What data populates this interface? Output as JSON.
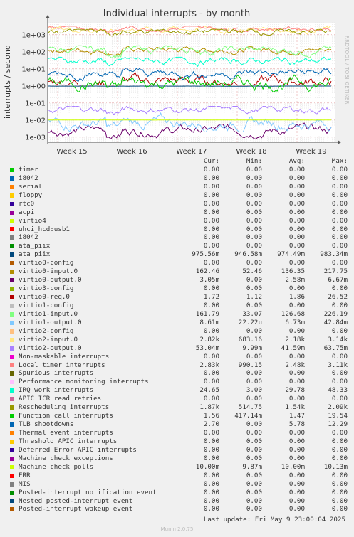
{
  "chart_data": {
    "type": "line",
    "title": "Individual interrupts - by month",
    "ylabel": "interrupts / second",
    "yscale": "log",
    "ylim": [
      0.0005,
      5000
    ],
    "y_ticks": [
      "1e+03",
      "1e+02",
      "1e+01",
      "1e+00",
      "1e-01",
      "1e-02",
      "1e-03"
    ],
    "x_ticks": [
      "Week 15",
      "Week 16",
      "Week 17",
      "Week 18",
      "Week 19"
    ],
    "grid": true,
    "legend": "below",
    "legend_header": {
      "cur": "Cur:",
      "min": "Min:",
      "avg": "Avg:",
      "max": "Max:"
    },
    "series": [
      {
        "name": "timer",
        "color": "#00cc00",
        "cur": "0.00",
        "min": "0.00",
        "avg": "0.00",
        "max": "0.00"
      },
      {
        "name": "i8042",
        "color": "#0066b3",
        "cur": "0.00",
        "min": "0.00",
        "avg": "0.00",
        "max": "0.00"
      },
      {
        "name": "serial",
        "color": "#ff8000",
        "cur": "0.00",
        "min": "0.00",
        "avg": "0.00",
        "max": "0.00"
      },
      {
        "name": "floppy",
        "color": "#ffcc00",
        "cur": "0.00",
        "min": "0.00",
        "avg": "0.00",
        "max": "0.00"
      },
      {
        "name": "rtc0",
        "color": "#330099",
        "cur": "0.00",
        "min": "0.00",
        "avg": "0.00",
        "max": "0.00"
      },
      {
        "name": "acpi",
        "color": "#990099",
        "cur": "0.00",
        "min": "0.00",
        "avg": "0.00",
        "max": "0.00"
      },
      {
        "name": "virtio4",
        "color": "#ccff00",
        "cur": "0.00",
        "min": "0.00",
        "avg": "0.00",
        "max": "0.00"
      },
      {
        "name": "uhci_hcd:usb1",
        "color": "#ff0000",
        "cur": "0.00",
        "min": "0.00",
        "avg": "0.00",
        "max": "0.00"
      },
      {
        "name": "i8042",
        "color": "#808080",
        "cur": "0.00",
        "min": "0.00",
        "avg": "0.00",
        "max": "0.00"
      },
      {
        "name": "ata_piix",
        "color": "#008f00",
        "cur": "0.00",
        "min": "0.00",
        "avg": "0.00",
        "max": "0.00"
      },
      {
        "name": "ata_piix",
        "color": "#00487d",
        "cur": "975.56m",
        "min": "946.58m",
        "avg": "974.49m",
        "max": "983.34m"
      },
      {
        "name": "virtio0-config",
        "color": "#b35a00",
        "cur": "0.00",
        "min": "0.00",
        "avg": "0.00",
        "max": "0.00"
      },
      {
        "name": "virtio0-input.0",
        "color": "#b38f00",
        "cur": "162.46",
        "min": "52.46",
        "avg": "136.35",
        "max": "217.75"
      },
      {
        "name": "virtio0-output.0",
        "color": "#6b006b",
        "cur": "3.05m",
        "min": "0.00",
        "avg": "2.58m",
        "max": "6.67m"
      },
      {
        "name": "virtio3-config",
        "color": "#8fb300",
        "cur": "0.00",
        "min": "0.00",
        "avg": "0.00",
        "max": "0.00"
      },
      {
        "name": "virtio0-req.0",
        "color": "#b30000",
        "cur": "1.72",
        "min": "1.12",
        "avg": "1.86",
        "max": "26.52"
      },
      {
        "name": "virtio1-config",
        "color": "#bebebe",
        "cur": "0.00",
        "min": "0.00",
        "avg": "0.00",
        "max": "0.00"
      },
      {
        "name": "virtio1-input.0",
        "color": "#80ff80",
        "cur": "161.79",
        "min": "33.07",
        "avg": "126.68",
        "max": "226.19"
      },
      {
        "name": "virtio1-output.0",
        "color": "#80c9ff",
        "cur": "8.61m",
        "min": "22.22u",
        "avg": "6.73m",
        "max": "42.84m"
      },
      {
        "name": "virtio2-config",
        "color": "#ffc080",
        "cur": "0.00",
        "min": "0.00",
        "avg": "0.00",
        "max": "0.00"
      },
      {
        "name": "virtio2-input.0",
        "color": "#ffe680",
        "cur": "2.82k",
        "min": "683.16",
        "avg": "2.18k",
        "max": "3.14k"
      },
      {
        "name": "virtio2-output.0",
        "color": "#aa80ff",
        "cur": "53.04m",
        "min": "9.99m",
        "avg": "41.59m",
        "max": "63.75m"
      },
      {
        "name": "Non-maskable interrupts",
        "color": "#ee00cc",
        "cur": "0.00",
        "min": "0.00",
        "avg": "0.00",
        "max": "0.00"
      },
      {
        "name": "Local timer interrupts",
        "color": "#ff8080",
        "cur": "2.83k",
        "min": "990.15",
        "avg": "2.48k",
        "max": "3.11k"
      },
      {
        "name": "Spurious interrupts",
        "color": "#666600",
        "cur": "0.00",
        "min": "0.00",
        "avg": "0.00",
        "max": "0.00"
      },
      {
        "name": "Performance monitoring interrupts",
        "color": "#ffbfff",
        "cur": "0.00",
        "min": "0.00",
        "avg": "0.00",
        "max": "0.00"
      },
      {
        "name": "IRQ work interrupts",
        "color": "#00ffcc",
        "cur": "24.65",
        "min": "3.00",
        "avg": "29.78",
        "max": "48.33"
      },
      {
        "name": "APIC ICR read retries",
        "color": "#cc6699",
        "cur": "0.00",
        "min": "0.00",
        "avg": "0.00",
        "max": "0.00"
      },
      {
        "name": "Rescheduling interrupts",
        "color": "#999900",
        "cur": "1.87k",
        "min": "514.75",
        "avg": "1.54k",
        "max": "2.09k"
      },
      {
        "name": "Function call interrupts",
        "color": "#00cc00",
        "cur": "1.56",
        "min": "417.14m",
        "avg": "1.47",
        "max": "19.54"
      },
      {
        "name": "TLB shootdowns",
        "color": "#0066b3",
        "cur": "2.70",
        "min": "0.00",
        "avg": "5.78",
        "max": "12.29"
      },
      {
        "name": "Thermal event interrupts",
        "color": "#ff8000",
        "cur": "0.00",
        "min": "0.00",
        "avg": "0.00",
        "max": "0.00"
      },
      {
        "name": "Threshold APIC interrupts",
        "color": "#ffcc00",
        "cur": "0.00",
        "min": "0.00",
        "avg": "0.00",
        "max": "0.00"
      },
      {
        "name": "Deferred Error APIC interrupts",
        "color": "#330099",
        "cur": "0.00",
        "min": "0.00",
        "avg": "0.00",
        "max": "0.00"
      },
      {
        "name": "Machine check exceptions",
        "color": "#990099",
        "cur": "0.00",
        "min": "0.00",
        "avg": "0.00",
        "max": "0.00"
      },
      {
        "name": "Machine check polls",
        "color": "#ccff00",
        "cur": "10.00m",
        "min": "9.87m",
        "avg": "10.00m",
        "max": "10.13m"
      },
      {
        "name": "ERR",
        "color": "#ff0000",
        "cur": "0.00",
        "min": "0.00",
        "avg": "0.00",
        "max": "0.00"
      },
      {
        "name": "MIS",
        "color": "#808080",
        "cur": "0.00",
        "min": "0.00",
        "avg": "0.00",
        "max": "0.00"
      },
      {
        "name": "Posted-interrupt notification event",
        "color": "#008f00",
        "cur": "0.00",
        "min": "0.00",
        "avg": "0.00",
        "max": "0.00"
      },
      {
        "name": "Nested posted-interrupt event",
        "color": "#00487d",
        "cur": "0.00",
        "min": "0.00",
        "avg": "0.00",
        "max": "0.00"
      },
      {
        "name": "Posted-interrupt wakeup event",
        "color": "#b35a00",
        "cur": "0.00",
        "min": "0.00",
        "avg": "0.00",
        "max": "0.00"
      }
    ],
    "last_update": "Last update: Fri May  9 23:00:04 2025",
    "side_label": "RRDTOOL / TOBI OETIKER",
    "footer": "Munin 2.0.75"
  }
}
